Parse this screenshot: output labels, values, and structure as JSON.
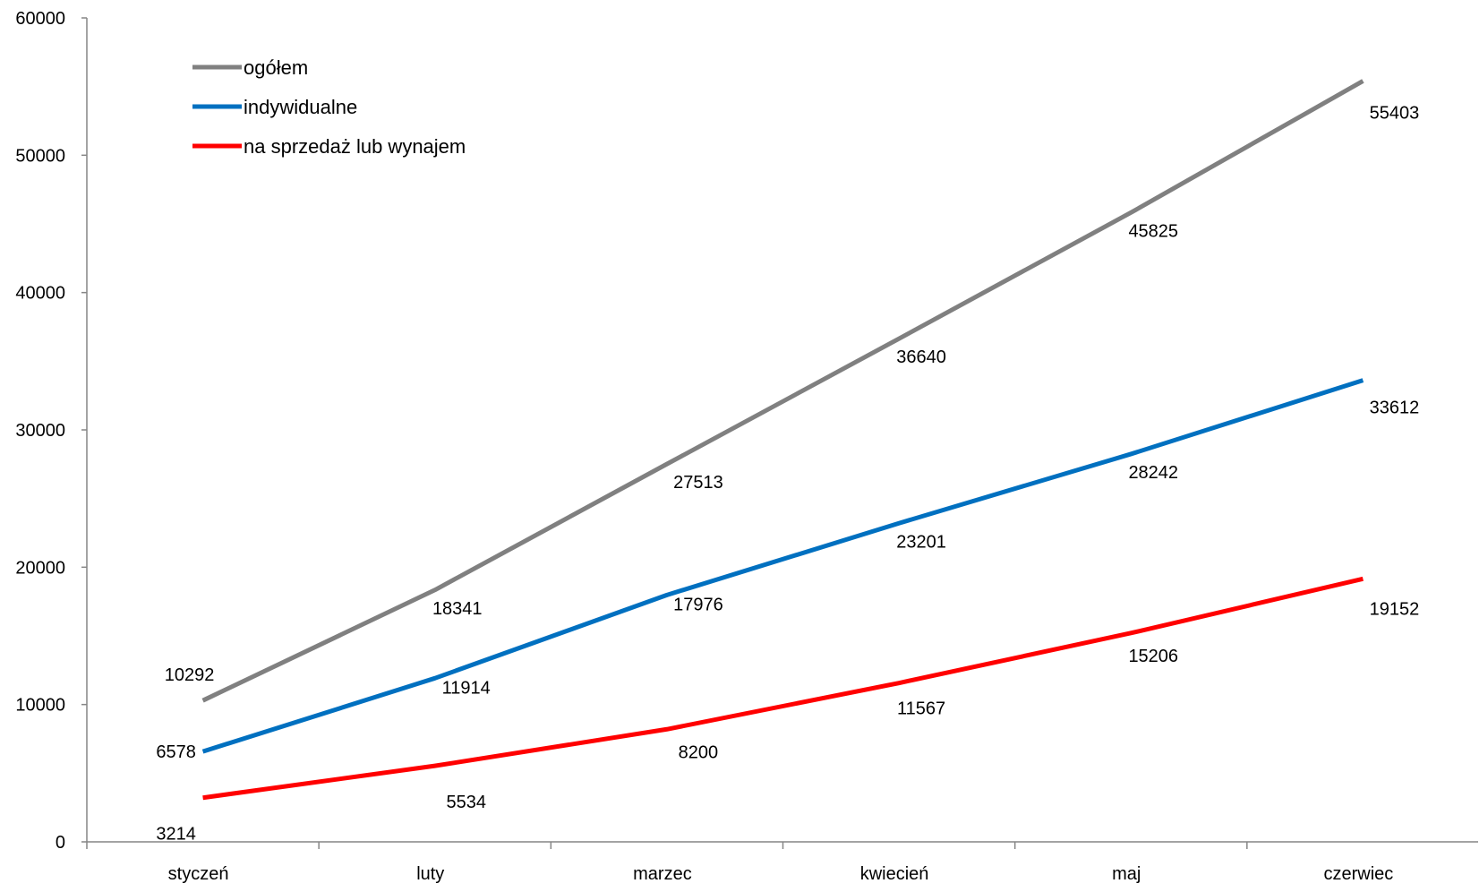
{
  "chart_data": {
    "type": "line",
    "categories": [
      "styczeń",
      "luty",
      "marzec",
      "kwiecień",
      "maj",
      "czerwiec"
    ],
    "ylim": [
      0,
      60000
    ],
    "y_ticks": [
      0,
      10000,
      20000,
      30000,
      40000,
      50000,
      60000
    ],
    "y_tick_labels": [
      "0",
      "10000",
      "20000",
      "30000",
      "40000",
      "50000",
      "60000"
    ],
    "grid": false,
    "legend_position": "top-left",
    "series": [
      {
        "name": "ogółem",
        "color": "#808080",
        "values": [
          10292,
          18341,
          27513,
          36640,
          45825,
          55403
        ],
        "labels": [
          "10292",
          "18341",
          "27513",
          "36640",
          "45825",
          "55403"
        ]
      },
      {
        "name": "indywidualne",
        "color": "#0070C0",
        "values": [
          6578,
          11914,
          17976,
          23201,
          28242,
          33612
        ],
        "labels": [
          "6578",
          "11914",
          "17976",
          "23201",
          "28242",
          "33612"
        ]
      },
      {
        "name": "na sprzedaż lub wynajem",
        "color": "#FF0000",
        "values": [
          3214,
          5534,
          8200,
          11567,
          15206,
          19152
        ],
        "labels": [
          "3214",
          "5534",
          "8200",
          "11567",
          "15206",
          "19152"
        ]
      }
    ]
  }
}
